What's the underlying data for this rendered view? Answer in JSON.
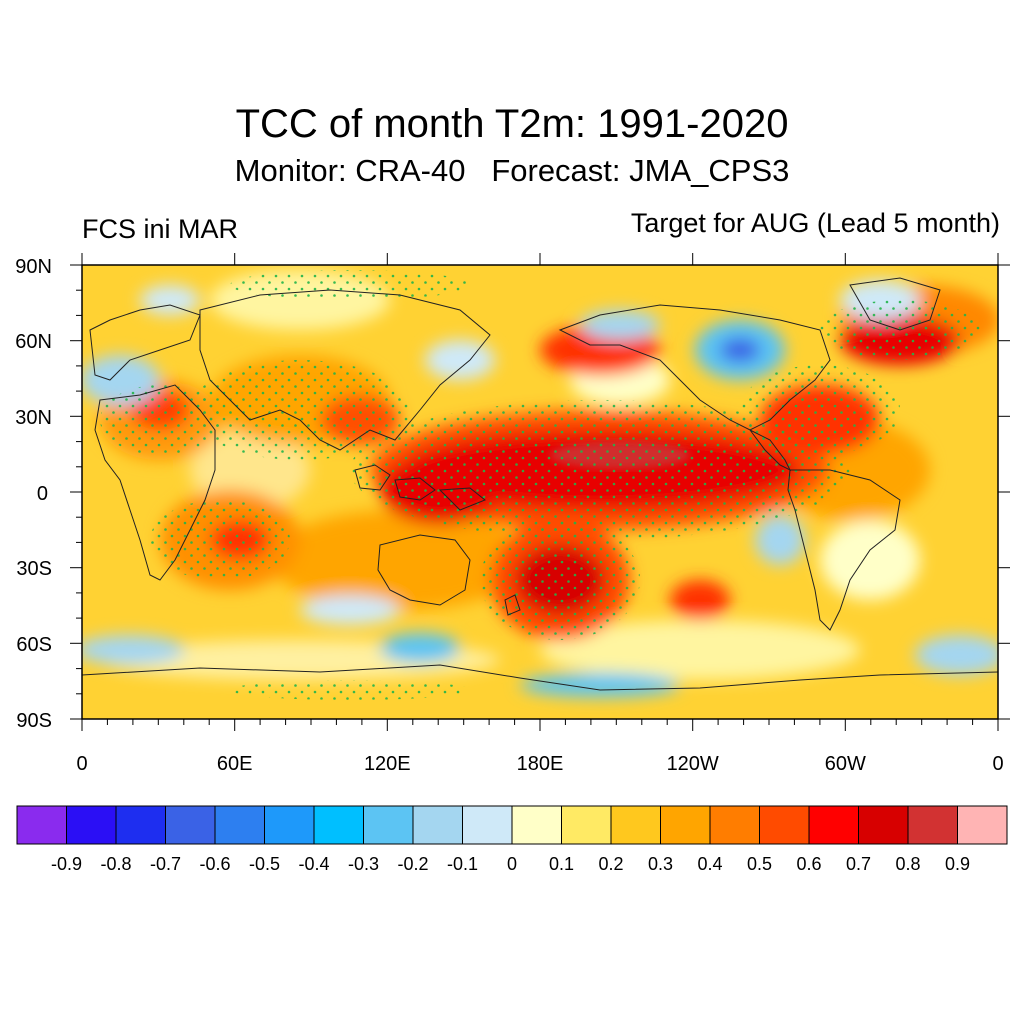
{
  "title": "TCC of month T2m: 1991-2020",
  "subtitle": "Monitor: CRA-40   Forecast: JMA_CPS3",
  "left_label": "FCS ini MAR",
  "right_label": "Target for AUG (Lead 5 month)",
  "chart_data": {
    "type": "heatmap",
    "variable": "Temporal correlation coefficient, 2m temperature",
    "lat_ticks": [
      "90N",
      "60N",
      "30N",
      "0",
      "30S",
      "60S",
      "90S"
    ],
    "lon_ticks": [
      "0",
      "60E",
      "120E",
      "180E",
      "120W",
      "60W",
      "0"
    ],
    "lat_range": [
      -90,
      90
    ],
    "lon_range": [
      0,
      360
    ],
    "colorbar": {
      "levels": [
        "-0.9",
        "-0.8",
        "-0.7",
        "-0.6",
        "-0.5",
        "-0.4",
        "-0.3",
        "-0.2",
        "-0.1",
        "0",
        "0.1",
        "0.2",
        "0.3",
        "0.4",
        "0.5",
        "0.6",
        "0.7",
        "0.8",
        "0.9"
      ],
      "colors": [
        "#8A2BEE",
        "#2B0FF5",
        "#1E2EF0",
        "#3A62E6",
        "#2D7FF0",
        "#1E99FA",
        "#00BFFF",
        "#5CC4F3",
        "#A4D6F0",
        "#CFE9F8",
        "#FFFFC8",
        "#FFEA64",
        "#FFC81E",
        "#FFA500",
        "#FF7D00",
        "#FF4B00",
        "#FF0000",
        "#D70000",
        "#D23232",
        "#FFB4B4"
      ]
    },
    "stippling": "green dots mark statistically significant correlations"
  }
}
